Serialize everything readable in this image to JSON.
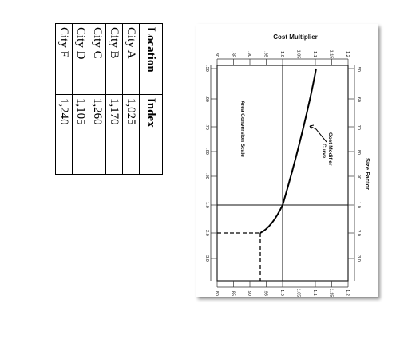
{
  "table": {
    "headers": [
      "Location",
      "Index"
    ],
    "rows": [
      {
        "location": "City A",
        "index": "1,025"
      },
      {
        "location": "City B",
        "index": "1,170"
      },
      {
        "location": "City C",
        "index": "1,260"
      },
      {
        "location": "City D",
        "index": "1,105"
      },
      {
        "location": "City E",
        "index": "1,240"
      }
    ]
  },
  "chart": {
    "title": "Cost Multiplier",
    "size_axis_label": "Size Factor",
    "curve_label_line1": "Cost Modifier",
    "curve_label_line2": "Curve",
    "scale_label": "Area Conversion Scale",
    "multiplier_ticks": [
      ".80",
      ".85",
      ".90",
      ".95",
      "1.0",
      "1.05",
      "1.1",
      "1.15",
      "1.2"
    ],
    "size_ticks": [
      ".50",
      ".60",
      ".70",
      ".80",
      ".90",
      "1.0",
      "2.0",
      "3.0"
    ]
  }
}
